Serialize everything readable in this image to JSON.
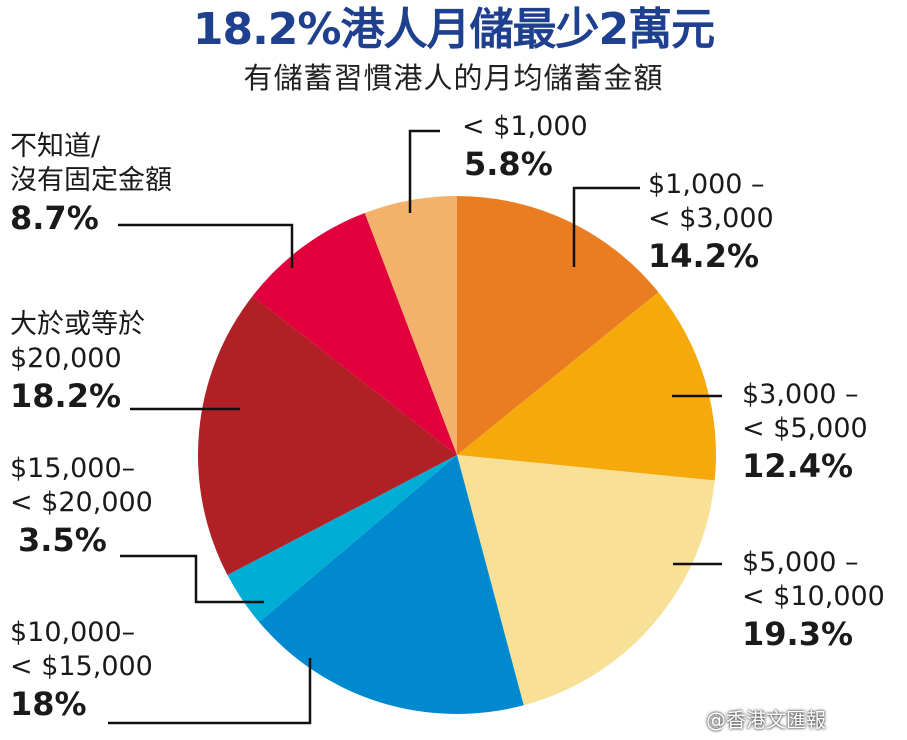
{
  "title": "18.2%港人月儲最少2萬元",
  "subtitle": "有儲蓄習慣港人的月均儲蓄金額",
  "watermark": "@香港文匯報",
  "chart_data": {
    "type": "pie",
    "title": "18.2%港人月儲最少2萬元",
    "subtitle": "有儲蓄習慣港人的月均儲蓄金額",
    "slices": [
      {
        "label_lines": [
          "$1,000 –",
          "< $3,000"
        ],
        "value": 14.2,
        "pct_label": "14.2%",
        "color": "#ea7d22"
      },
      {
        "label_lines": [
          "$3,000  –",
          "< $5,000"
        ],
        "value": 12.4,
        "pct_label": "12.4%",
        "color": "#f5a90a"
      },
      {
        "label_lines": [
          "$5,000  –",
          "< $10,000"
        ],
        "value": 19.3,
        "pct_label": "19.3%",
        "color": "#f8e196"
      },
      {
        "label_lines": [
          "$10,000–",
          "< $15,000"
        ],
        "value": 18,
        "pct_label": "18%",
        "color": "#0089cf"
      },
      {
        "label_lines": [
          "$15,000–",
          "< $20,000"
        ],
        "value": 3.5,
        "pct_label": "3.5%",
        "color": "#00add4"
      },
      {
        "label_lines": [
          "大於或等於",
          "$20,000"
        ],
        "value": 18.2,
        "pct_label": "18.2%",
        "color": "#b02025"
      },
      {
        "label_lines": [
          "不知道/",
          "沒有固定金額"
        ],
        "value": 8.7,
        "pct_label": "8.7%",
        "color": "#e2003c"
      },
      {
        "label_lines": [
          "< $1,000"
        ],
        "value": 5.8,
        "pct_label": "5.8%",
        "color": "#f3b26b"
      }
    ]
  }
}
